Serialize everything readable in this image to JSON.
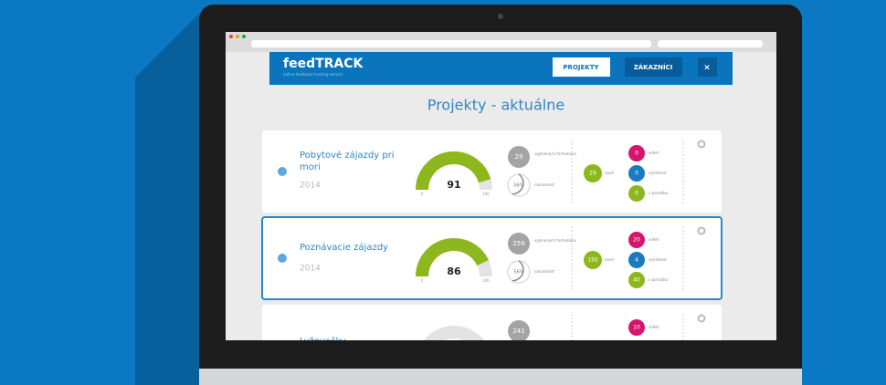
{
  "header": {
    "logo": "feedTRACK",
    "tagline": "online feedback tracking service",
    "nav": [
      "PROJEKTY",
      "ZÁKAZNÍCI",
      "×"
    ]
  },
  "page_title": "Projekty - aktuálne",
  "projects": [
    {
      "title": "Pobytové zájazdy pri mori",
      "year": 2014,
      "score": 91,
      "score_min": 0,
      "score_max": 100,
      "forms": 29,
      "forms_label": "vyplnených formulárov",
      "return_rate": "56%",
      "return_label": "návratnosť",
      "new": 29,
      "new_label": "nové",
      "statuses": [
        {
          "value": 0,
          "label": "vidieť",
          "color": "#d6156d"
        },
        {
          "value": 0,
          "label": "vyriešené",
          "color": "#1b7bc0"
        },
        {
          "value": 0,
          "label": "v poriadku",
          "color": "#8db81d"
        }
      ]
    },
    {
      "title": "Poznávacie zájazdy",
      "year": 2014,
      "score": 86,
      "score_min": 0,
      "score_max": 100,
      "forms": 259,
      "forms_label": "vyplnených formulárov",
      "return_rate": "56%",
      "return_label": "návratnosť",
      "new": 192,
      "new_label": "nové",
      "statuses": [
        {
          "value": 20,
          "label": "vidieť",
          "color": "#d6156d"
        },
        {
          "value": 4,
          "label": "vyriešené",
          "color": "#1b7bc0"
        },
        {
          "value": 40,
          "label": "v poriadku",
          "color": "#8db81d"
        }
      ]
    },
    {
      "title": "Lyžovačky",
      "forms": 241,
      "statuses": [
        {
          "value": 10,
          "label": "vidieť",
          "color": "#d6156d"
        }
      ]
    }
  ]
}
